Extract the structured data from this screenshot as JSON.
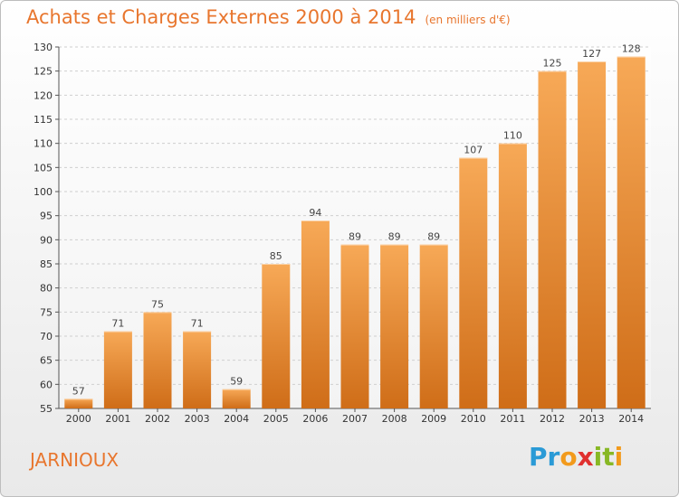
{
  "title": "Achats et Charges Externes 2000 à 2014",
  "unit": "(en milliers d'€)",
  "commune": "JARNIOUX",
  "logo": {
    "letters": [
      "P",
      "r",
      "o",
      "x",
      "i",
      "t",
      "i"
    ],
    "colors": [
      "#2a9ad6",
      "#2a9ad6",
      "#f29a1c",
      "#e0302f",
      "#88b825",
      "#88b825",
      "#f29a1c"
    ]
  },
  "colors": {
    "bar_top": "#f7a957",
    "bar_bottom": "#cf6d18",
    "accent": "#e8762e"
  },
  "chart_data": {
    "type": "bar",
    "categories": [
      "2000",
      "2001",
      "2002",
      "2003",
      "2004",
      "2005",
      "2006",
      "2007",
      "2008",
      "2009",
      "2010",
      "2011",
      "2012",
      "2013",
      "2014"
    ],
    "values": [
      57,
      71,
      75,
      71,
      59,
      85,
      94,
      89,
      89,
      89,
      107,
      110,
      125,
      127,
      128
    ],
    "title": "Achats et Charges Externes 2000 à 2014",
    "ylim": [
      55,
      130
    ],
    "yticks": [
      55,
      60,
      65,
      70,
      75,
      80,
      85,
      90,
      95,
      100,
      105,
      110,
      115,
      120,
      125,
      130
    ],
    "grid": true
  }
}
